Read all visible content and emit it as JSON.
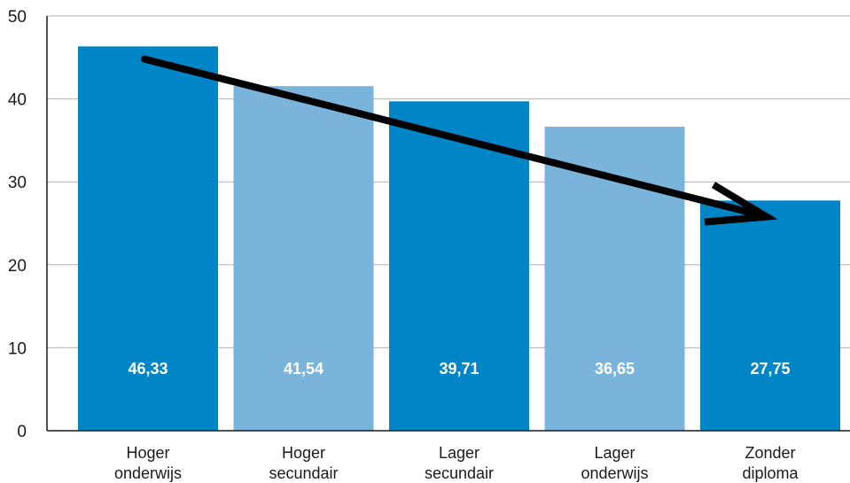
{
  "chart_data": {
    "type": "bar",
    "categories": [
      [
        "Hoger",
        "onderwijs"
      ],
      [
        "Hoger",
        "secundair"
      ],
      [
        "Lager",
        "secundair"
      ],
      [
        "Lager",
        "onderwijs"
      ],
      [
        "Zonder",
        "diploma"
      ]
    ],
    "values": [
      46.33,
      41.54,
      39.71,
      36.65,
      27.75
    ],
    "data_labels": [
      "46,33",
      "41,54",
      "39,71",
      "36,65",
      "27,75"
    ],
    "bar_colors": [
      "#0086c7",
      "#7ab4da",
      "#0086c7",
      "#7ab4da",
      "#0086c7"
    ],
    "ylim": [
      0,
      50
    ],
    "yticks": [
      0,
      10,
      20,
      30,
      40,
      50
    ],
    "grid": true,
    "gridline_color": "#b0b0b0",
    "trend_arrow": {
      "from": {
        "category_index": 0,
        "y": 44.8
      },
      "to": {
        "category_index": 4,
        "y": 25.8
      },
      "color": "#000000"
    }
  }
}
